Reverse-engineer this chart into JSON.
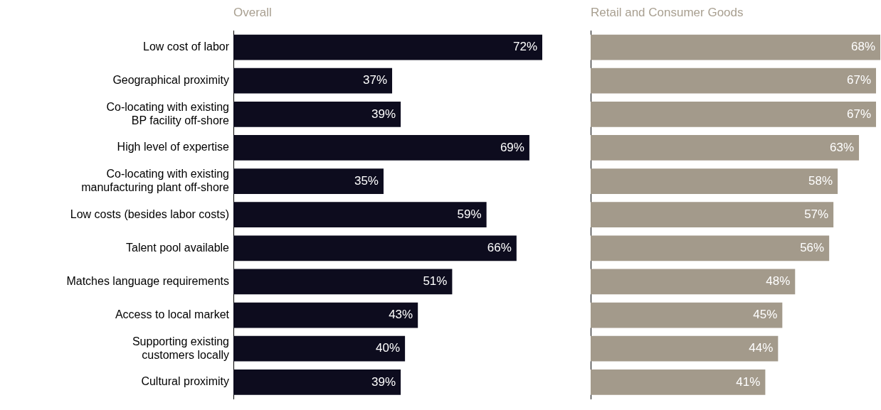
{
  "chart_data": [
    {
      "type": "bar",
      "orientation": "horizontal",
      "title": "Overall",
      "tick_labels": "y",
      "color": "#0d0c1e",
      "categories": [
        "Low cost of labor",
        "Geographical proximity",
        "Co-locating with existing\nBP facility off-shore",
        "High level of expertise",
        "Co-locating with existing\nmanufacturing plant off-shore",
        "Low costs (besides labor costs)",
        "Talent pool available",
        "Matches language requirements",
        "Access to local market",
        "Supporting existing\ncustomers locally",
        "Cultural proximity"
      ],
      "values": [
        72,
        37,
        39,
        69,
        35,
        59,
        66,
        51,
        43,
        40,
        39
      ],
      "value_labels": [
        "72%",
        "37%",
        "39%",
        "69%",
        "35%",
        "59%",
        "66%",
        "51%",
        "43%",
        "40%",
        "39%"
      ]
    },
    {
      "type": "bar",
      "orientation": "horizontal",
      "title": "Retail and Consumer Goods",
      "tick_labels": "y",
      "color": "#a39a8b",
      "categories": [
        null,
        null,
        null,
        null,
        null,
        null,
        null,
        null,
        null,
        null,
        null
      ],
      "values": [
        68,
        67,
        67,
        63,
        58,
        57,
        56,
        48,
        45,
        44,
        41
      ],
      "value_labels": [
        "68%",
        "67%",
        "67%",
        "63%",
        "58%",
        "57%",
        "56%",
        "48%",
        "45%",
        "44%",
        "41%"
      ]
    }
  ]
}
